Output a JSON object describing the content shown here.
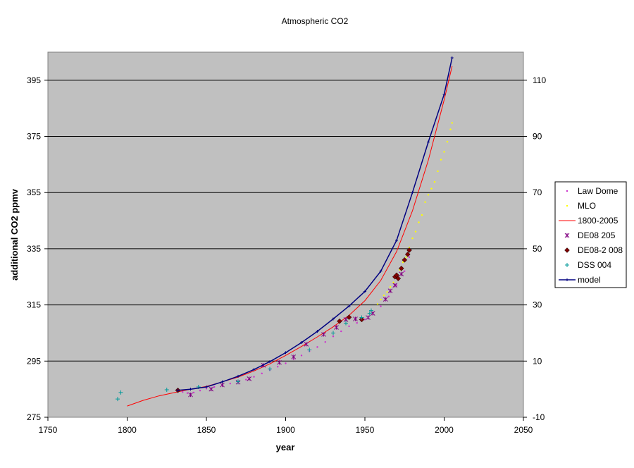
{
  "chart_data": {
    "type": "scatter",
    "title": "Atmospheric CO2",
    "xlabel": "year",
    "ylabel": "additional CO2 ppmv",
    "xlim": [
      1750,
      2050
    ],
    "ylim": [
      275,
      405
    ],
    "y2lim": [
      -10,
      120
    ],
    "xticks": [
      "1750",
      "1800",
      "1850",
      "1900",
      "1950",
      "2000",
      "2050"
    ],
    "yticks": [
      "275",
      "295",
      "315",
      "335",
      "355",
      "375",
      "395"
    ],
    "y2ticks": [
      "-10",
      "10",
      "30",
      "50",
      "70",
      "90",
      "110"
    ],
    "grid": "horizontal major lines",
    "plot_background": "#c0c0c0",
    "legend_position": "right",
    "series": [
      {
        "name": "Law Dome",
        "marker": "dot",
        "color": "#cc33cc",
        "x": [
          1832,
          1835,
          1838,
          1842,
          1846,
          1850,
          1855,
          1860,
          1865,
          1870,
          1875,
          1880,
          1885,
          1890,
          1895,
          1900,
          1905,
          1910,
          1915,
          1920,
          1925,
          1930,
          1935,
          1940,
          1945,
          1950,
          1955,
          1960,
          1965,
          1970,
          1975,
          1978
        ],
        "y": [
          284.6,
          284.0,
          283.6,
          283.8,
          284.5,
          285.2,
          285.8,
          286.4,
          287.0,
          287.6,
          288.4,
          289.4,
          290.6,
          291.8,
          293.0,
          294.2,
          295.6,
          297.0,
          298.5,
          300.0,
          301.8,
          303.8,
          305.6,
          307.4,
          308.6,
          309.8,
          311.8,
          314.5,
          318.0,
          322.0,
          327.0,
          332.0
        ]
      },
      {
        "name": "MLO",
        "marker": "dot",
        "color": "#ffff00",
        "x": [
          1958,
          1960,
          1962,
          1964,
          1966,
          1968,
          1970,
          1972,
          1974,
          1976,
          1978,
          1980,
          1982,
          1984,
          1986,
          1988,
          1990,
          1992,
          1994,
          1996,
          1998,
          2000,
          2002,
          2004,
          2005
        ],
        "y": [
          315.3,
          316.9,
          318.4,
          319.6,
          321.4,
          323.0,
          325.7,
          327.5,
          330.2,
          332.0,
          335.4,
          338.7,
          341.1,
          344.4,
          347.0,
          351.6,
          354.2,
          356.4,
          358.8,
          362.6,
          366.7,
          369.5,
          373.1,
          377.5,
          379.8
        ]
      },
      {
        "name": "1800-2005",
        "marker": "line",
        "color": "#ff0000",
        "x": [
          1800,
          1810,
          1820,
          1830,
          1840,
          1850,
          1860,
          1870,
          1880,
          1890,
          1900,
          1910,
          1920,
          1930,
          1940,
          1950,
          1960,
          1970,
          1980,
          1990,
          2000,
          2005
        ],
        "y": [
          279.0,
          281.0,
          282.6,
          283.8,
          285.0,
          286.0,
          287.6,
          289.3,
          291.5,
          294.0,
          297.0,
          300.2,
          303.6,
          307.2,
          311.3,
          316.5,
          323.7,
          334.0,
          348.5,
          366.5,
          388.0,
          400.0
        ]
      },
      {
        "name": "DE08 205",
        "marker": "x",
        "color": "#800080",
        "x": [
          1840,
          1853,
          1860,
          1870,
          1877,
          1886,
          1896,
          1905,
          1913,
          1924,
          1932,
          1938,
          1944,
          1952,
          1955,
          1963,
          1966,
          1969,
          1973
        ],
        "y": [
          283.0,
          285.0,
          286.5,
          287.5,
          288.7,
          293.5,
          294.5,
          296.5,
          301.0,
          304.5,
          307.0,
          309.8,
          310.0,
          310.5,
          312.0,
          317.0,
          320.0,
          322.0,
          326.0
        ]
      },
      {
        "name": "DE08-2 008",
        "marker": "diamond",
        "color": "#800000",
        "x": [
          1832,
          1934,
          1940,
          1948,
          1969,
          1970,
          1971,
          1973,
          1975,
          1977,
          1978
        ],
        "y": [
          284.6,
          309.2,
          310.6,
          309.8,
          325.0,
          325.6,
          324.4,
          328.0,
          331.0,
          333.0,
          334.5
        ]
      },
      {
        "name": "DSS 004",
        "marker": "plus",
        "color": "#009999",
        "x": [
          1794,
          1796,
          1825,
          1845,
          1870,
          1890,
          1915,
          1930,
          1938,
          1948,
          1953,
          1954
        ],
        "y": [
          281.5,
          283.8,
          284.8,
          285.8,
          287.7,
          292.2,
          299.0,
          305.0,
          308.5,
          310.5,
          312.0,
          313.0
        ]
      },
      {
        "name": "model",
        "marker": "line-plus",
        "color": "#000080",
        "x": [
          1832,
          1840,
          1850,
          1860,
          1870,
          1880,
          1890,
          1900,
          1910,
          1920,
          1930,
          1940,
          1950,
          1960,
          1970,
          1980,
          1990,
          2000,
          2005
        ],
        "y": [
          284.6,
          285.0,
          285.8,
          287.6,
          289.6,
          292.0,
          294.8,
          298.0,
          301.6,
          305.6,
          310.0,
          314.6,
          319.8,
          327.0,
          338.0,
          355.0,
          373.0,
          390.0,
          403.0
        ]
      }
    ]
  }
}
